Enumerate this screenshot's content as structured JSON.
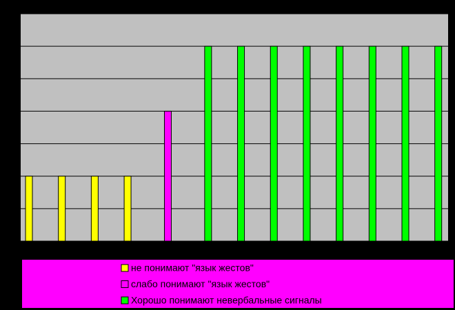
{
  "chart_data": {
    "type": "bar",
    "categories": [
      null,
      null,
      null,
      null,
      null,
      null,
      null,
      null,
      null,
      null,
      null,
      null,
      null
    ],
    "series": [
      {
        "name": "не понимают \"язык жестов\"",
        "color": "#ffff00",
        "values": [
          2,
          2,
          2,
          2,
          null,
          null,
          null,
          null,
          null,
          null,
          null,
          null,
          null
        ]
      },
      {
        "name": "слабо понимают \"язык жестов\"",
        "color": "#ff00ff",
        "values": [
          null,
          null,
          null,
          null,
          4,
          null,
          null,
          null,
          null,
          null,
          null,
          null,
          null
        ]
      },
      {
        "name": "Хорошо понимают невербальные сигналы",
        "color": "#00ff00",
        "values": [
          null,
          null,
          null,
          null,
          null,
          6,
          6,
          6,
          6,
          6,
          6,
          6,
          6
        ]
      }
    ],
    "ylim": [
      0,
      7
    ],
    "yticks": [
      0,
      1,
      2,
      3,
      4,
      5,
      6,
      7
    ],
    "grid": true,
    "legend": "bottom"
  }
}
